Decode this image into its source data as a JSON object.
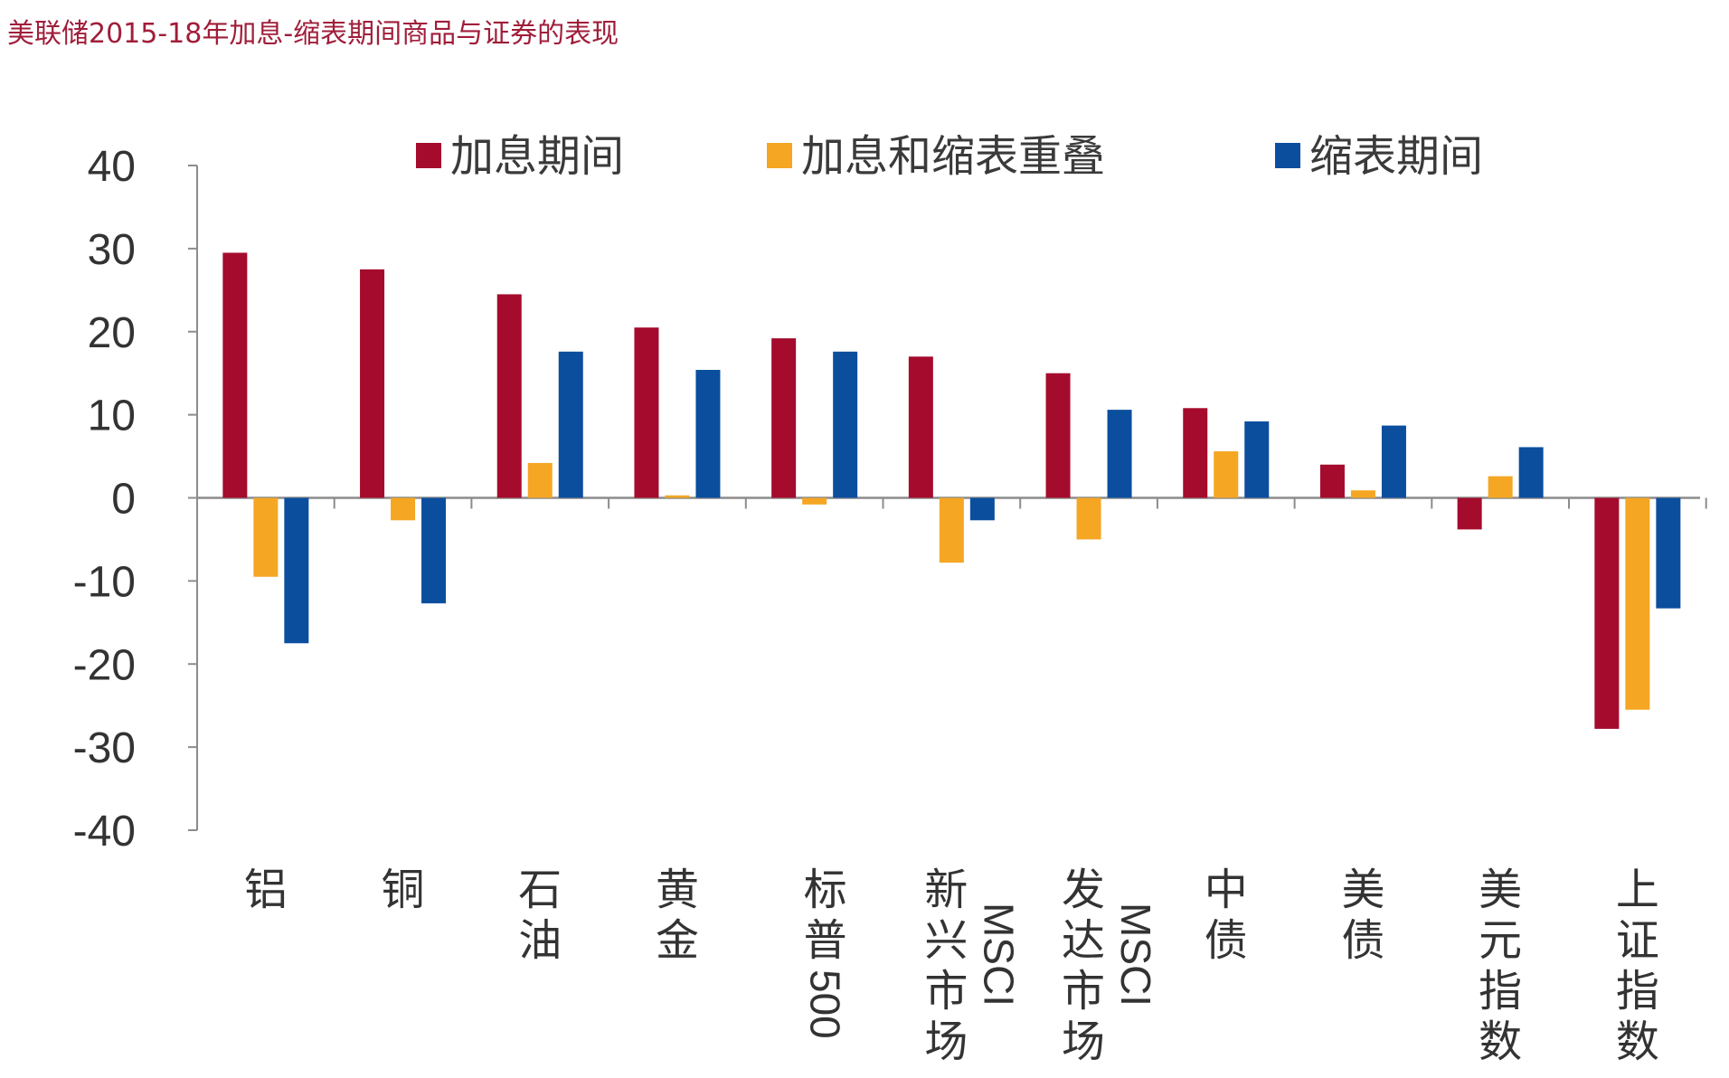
{
  "page": {
    "title": "美联储2015-18年加息-缩表期间商品与证券的表现"
  },
  "chart_data": {
    "type": "bar",
    "title": "美联储2015-18年加息-缩表期间商品与证券的表现",
    "xlabel": "",
    "ylabel": "",
    "ylim": [
      -40,
      40
    ],
    "yticks": [
      40,
      30,
      20,
      10,
      0,
      -10,
      -20,
      -30,
      -40
    ],
    "ytick_labels": [
      "40",
      "30",
      "20",
      "10",
      "0",
      "-10",
      "-20",
      "-30",
      "-40"
    ],
    "legend_position": "top",
    "grid": false,
    "categories": [
      {
        "name": "铝",
        "lines": [
          "铝"
        ],
        "rotated": ""
      },
      {
        "name": "铜",
        "lines": [
          "铜"
        ],
        "rotated": ""
      },
      {
        "name": "石油",
        "lines": [
          "石",
          "油"
        ],
        "rotated": ""
      },
      {
        "name": "黄金",
        "lines": [
          "黄",
          "金"
        ],
        "rotated": ""
      },
      {
        "name": "标普500",
        "lines": [
          "标",
          "普"
        ],
        "rotated": "500"
      },
      {
        "name": "新兴市场MSCI",
        "lines": [
          "新",
          "兴",
          "市",
          "场"
        ],
        "rotated": "MSCI"
      },
      {
        "name": "发达市场MSCI",
        "lines": [
          "发",
          "达",
          "市",
          "场"
        ],
        "rotated": "MSCI"
      },
      {
        "name": "中债",
        "lines": [
          "中",
          "债"
        ],
        "rotated": ""
      },
      {
        "name": "美债",
        "lines": [
          "美",
          "债"
        ],
        "rotated": ""
      },
      {
        "name": "美元指数",
        "lines": [
          "美",
          "元",
          "指",
          "数"
        ],
        "rotated": ""
      },
      {
        "name": "上证指数",
        "lines": [
          "上",
          "证",
          "指",
          "数"
        ],
        "rotated": ""
      }
    ],
    "series": [
      {
        "name": "加息期间",
        "color": "#a50b2c",
        "values": [
          29.5,
          27.5,
          24.5,
          20.5,
          19.2,
          17.0,
          15.0,
          10.8,
          4.0,
          -3.8,
          -27.8
        ]
      },
      {
        "name": "加息和缩表重叠",
        "color": "#f5a623",
        "values": [
          -9.5,
          -2.7,
          4.2,
          0.3,
          -0.8,
          -7.8,
          -5.0,
          5.6,
          0.9,
          2.6,
          -25.5
        ]
      },
      {
        "name": "缩表期间",
        "color": "#0b4e9e",
        "values": [
          -17.5,
          -12.7,
          17.6,
          15.4,
          17.6,
          -2.7,
          10.6,
          9.2,
          8.7,
          6.1,
          -13.3
        ]
      }
    ]
  }
}
